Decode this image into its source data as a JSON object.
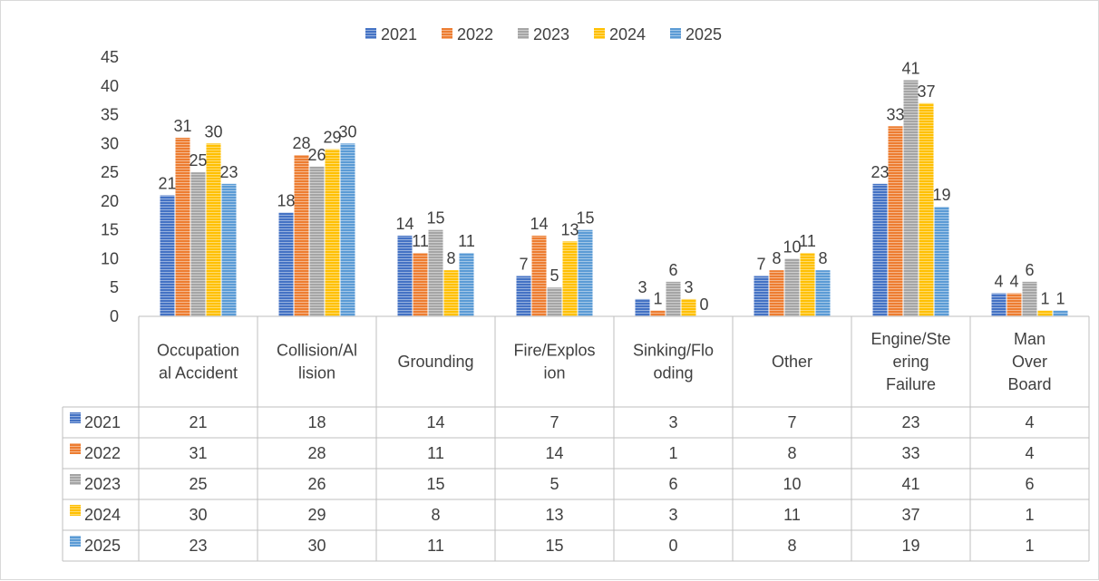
{
  "chart_data": {
    "type": "bar",
    "categories": [
      [
        "Occupation",
        "al Accident"
      ],
      [
        "Collision/Al",
        "lision"
      ],
      [
        "Grounding"
      ],
      [
        "Fire/Explos",
        "ion"
      ],
      [
        "Sinking/Flo",
        "oding"
      ],
      [
        "Other"
      ],
      [
        "Engine/Ste",
        "ering",
        "Failure"
      ],
      [
        "Man",
        "Over",
        "Board"
      ]
    ],
    "series": [
      {
        "name": "2021",
        "color": "#4472c4",
        "values": [
          21,
          18,
          14,
          7,
          3,
          7,
          23,
          4
        ]
      },
      {
        "name": "2022",
        "color": "#ed7d31",
        "values": [
          31,
          28,
          11,
          14,
          1,
          8,
          33,
          4
        ]
      },
      {
        "name": "2023",
        "color": "#a5a5a5",
        "values": [
          25,
          26,
          15,
          5,
          6,
          10,
          41,
          6
        ]
      },
      {
        "name": "2024",
        "color": "#ffc000",
        "values": [
          30,
          29,
          8,
          13,
          3,
          11,
          37,
          1
        ]
      },
      {
        "name": "2025",
        "color": "#5b9bd5",
        "values": [
          23,
          30,
          11,
          15,
          0,
          8,
          19,
          1
        ]
      }
    ],
    "yticks": [
      0,
      5,
      10,
      15,
      20,
      25,
      30,
      35,
      40,
      45
    ],
    "ylim": [
      0,
      45
    ],
    "legend": "top",
    "data_table": true,
    "grid": false
  }
}
